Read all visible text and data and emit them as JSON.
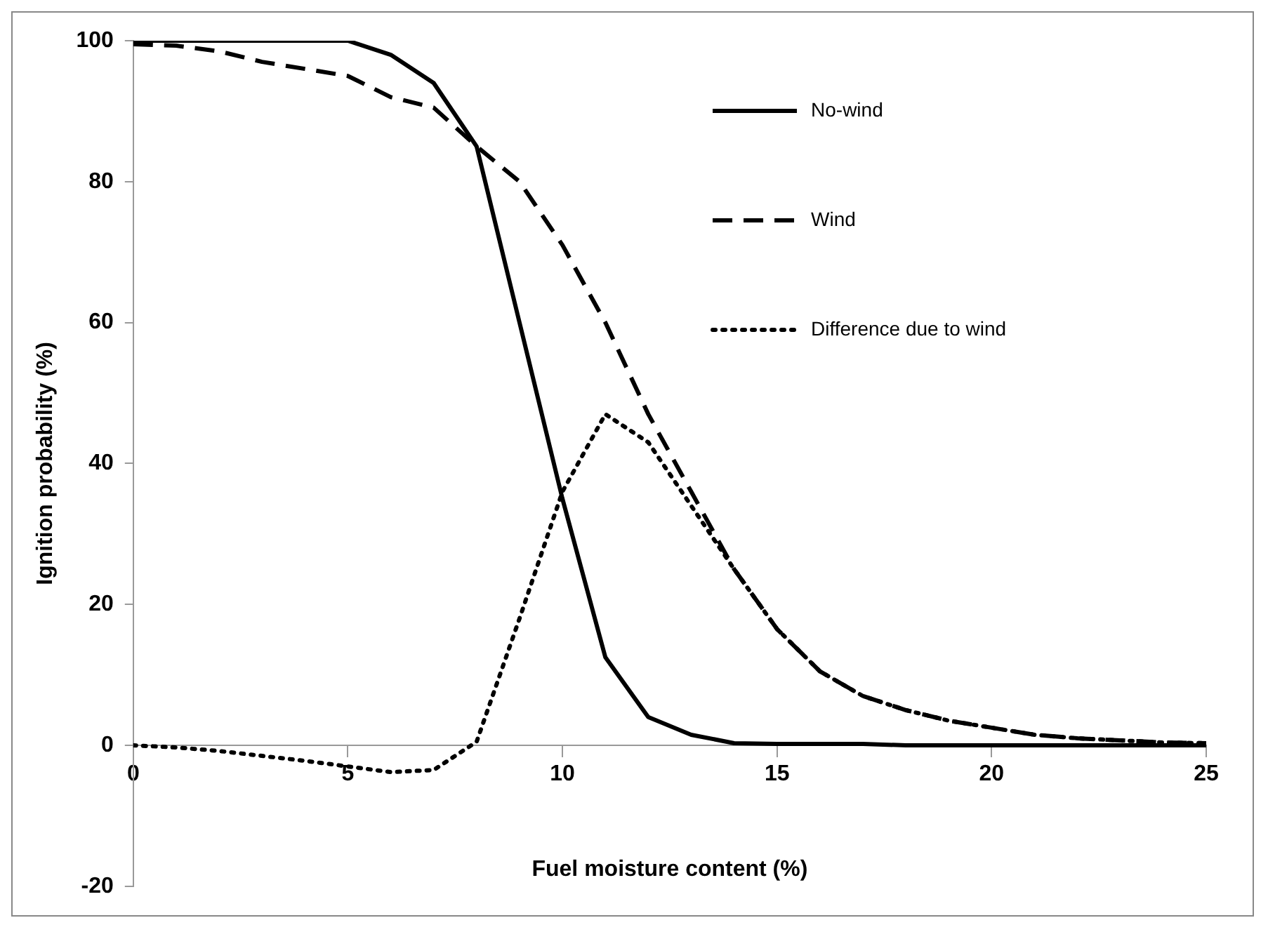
{
  "chart_data": {
    "type": "line",
    "xlabel": "Fuel moisture content (%)",
    "ylabel": "Ignition probability (%)",
    "x": [
      0,
      1,
      2,
      3,
      4,
      5,
      6,
      7,
      8,
      9,
      10,
      11,
      12,
      13,
      14,
      15,
      16,
      17,
      18,
      19,
      20,
      21,
      22,
      23,
      24,
      25
    ],
    "series": [
      {
        "name": "No-wind",
        "color": "#000000",
        "line_style": "solid",
        "values": [
          100,
          100,
          100,
          100,
          100,
          100,
          98,
          94,
          85,
          60,
          35,
          12.5,
          4,
          1.5,
          0.3,
          0.2,
          0.2,
          0.2,
          0,
          0,
          0,
          0,
          0,
          0,
          0,
          0
        ]
      },
      {
        "name": "Wind",
        "color": "#000000",
        "line_style": "dashed",
        "values": [
          99.5,
          99.3,
          98.5,
          97,
          96,
          95,
          92,
          90.5,
          85,
          80,
          71,
          60,
          47,
          36,
          25,
          16.5,
          10.5,
          7,
          5,
          3.5,
          2.5,
          1.5,
          1,
          0.7,
          0.4,
          0.3
        ]
      },
      {
        "name": "Difference due to wind",
        "color": "#000000",
        "line_style": "dotted",
        "values": [
          0,
          -0.3,
          -0.8,
          -1.5,
          -2.2,
          -3,
          -3.8,
          -3.5,
          0.5,
          18,
          36,
          47,
          43,
          34,
          25,
          16.5,
          10.5,
          7,
          5,
          3.5,
          2.5,
          1.5,
          1,
          0.7,
          0.4,
          0.3
        ]
      }
    ],
    "xlim": [
      0,
      25
    ],
    "xticks": [
      0,
      5,
      10,
      15,
      20,
      25
    ],
    "ylim": [
      -20,
      100
    ],
    "yticks": [
      -20,
      0,
      20,
      40,
      60,
      80,
      100
    ],
    "grid": false,
    "legend": "top right",
    "marker": "none"
  }
}
